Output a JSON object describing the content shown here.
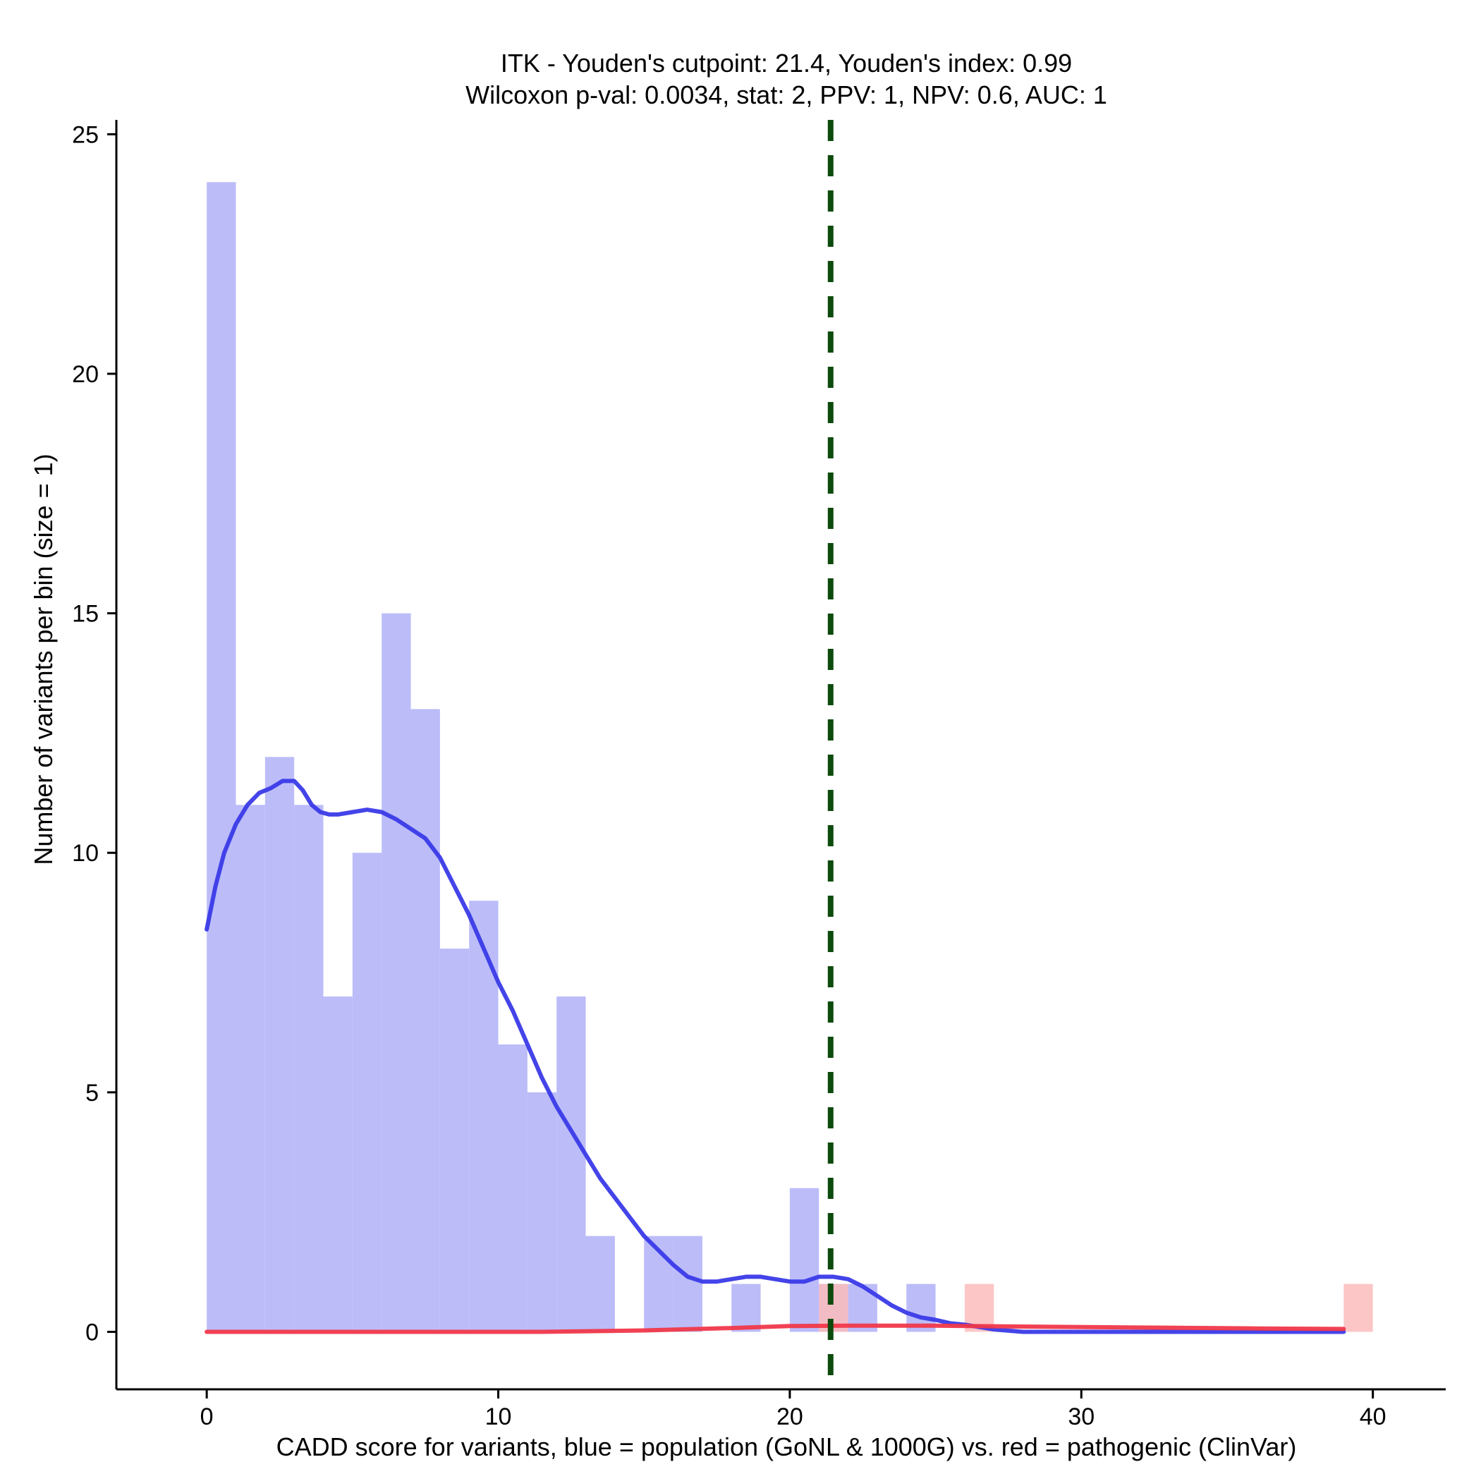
{
  "chart_data": {
    "type": "bar",
    "title_line1": "ITK - Youden's cutpoint: 21.4, Youden's index: 0.99",
    "title_line2": "Wilcoxon p-val: 0.0034, stat: 2, PPV: 1, NPV: 0.6, AUC: 1",
    "xlabel": "CADD score for variants, blue = population (GoNL & 1000G) vs. red = pathogenic (ClinVar)",
    "ylabel": "Number of variants per bin (size = 1)",
    "xlim": [
      -3.1,
      42.5
    ],
    "ylim": [
      -1.2,
      25.3
    ],
    "xticks": [
      0,
      10,
      20,
      30,
      40
    ],
    "yticks": [
      0,
      5,
      10,
      15,
      20,
      25
    ],
    "xtick_labels": [
      "0",
      "10",
      "20",
      "30",
      "40"
    ],
    "ytick_labels": [
      "0",
      "5",
      "10",
      "15",
      "20",
      "25"
    ],
    "bin_width": 1,
    "cutpoint": 21.4,
    "colors": {
      "population_bar": "#bcbcf9",
      "pathogenic_bar": "#fbbcbc",
      "population_line": "#3a3ae8",
      "pathogenic_line": "#f0384a",
      "cutpoint_line": "#0d4a0d"
    },
    "series": [
      {
        "name": "population",
        "bin_starts": [
          0,
          1,
          2,
          3,
          4,
          5,
          6,
          7,
          8,
          9,
          10,
          11,
          12,
          13,
          14,
          15,
          16,
          17,
          18,
          19,
          20,
          21,
          22,
          23,
          24,
          25
        ],
        "values": [
          24,
          11,
          12,
          11,
          7,
          10,
          15,
          13,
          8,
          9,
          6,
          5,
          7,
          2,
          0,
          2,
          2,
          0,
          1,
          0,
          3,
          1,
          1,
          0,
          1,
          0
        ]
      },
      {
        "name": "pathogenic",
        "bin_starts": [
          21,
          26,
          39
        ],
        "values": [
          1,
          1,
          1
        ]
      }
    ],
    "density_lines": [
      {
        "name": "population",
        "x": [
          0,
          0.3,
          0.6,
          1,
          1.4,
          1.8,
          2.2,
          2.6,
          3,
          3.3,
          3.6,
          3.9,
          4.2,
          4.5,
          5,
          5.5,
          6,
          6.5,
          7,
          7.5,
          8,
          8.5,
          9,
          9.5,
          10,
          10.5,
          11,
          11.5,
          12,
          12.5,
          13,
          13.5,
          14,
          14.5,
          15,
          15.5,
          16,
          16.5,
          17,
          17.5,
          18,
          18.5,
          19,
          19.5,
          20,
          20.5,
          21,
          21.5,
          22,
          22.5,
          23,
          23.5,
          24,
          24.5,
          25,
          25.5,
          26,
          26.5,
          27,
          28,
          30,
          33,
          36,
          39
        ],
        "y": [
          8.4,
          9.3,
          10,
          10.6,
          11,
          11.25,
          11.35,
          11.5,
          11.5,
          11.3,
          11.0,
          10.85,
          10.8,
          10.8,
          10.85,
          10.9,
          10.85,
          10.7,
          10.5,
          10.3,
          9.9,
          9.3,
          8.7,
          8.0,
          7.3,
          6.7,
          6.0,
          5.3,
          4.7,
          4.2,
          3.7,
          3.2,
          2.8,
          2.4,
          2.0,
          1.7,
          1.4,
          1.15,
          1.05,
          1.05,
          1.1,
          1.15,
          1.15,
          1.1,
          1.05,
          1.05,
          1.15,
          1.15,
          1.1,
          0.95,
          0.75,
          0.55,
          0.4,
          0.3,
          0.25,
          0.18,
          0.15,
          0.1,
          0.05,
          0.0,
          0.0,
          0.0,
          0.0,
          0.0
        ]
      },
      {
        "name": "pathogenic",
        "x": [
          0,
          5,
          10,
          11.5,
          15,
          18,
          20,
          22,
          25,
          28,
          32,
          36,
          39
        ],
        "y": [
          0.0,
          0.0,
          0.0,
          0.0,
          0.03,
          0.08,
          0.12,
          0.13,
          0.13,
          0.11,
          0.09,
          0.07,
          0.06
        ]
      }
    ]
  }
}
